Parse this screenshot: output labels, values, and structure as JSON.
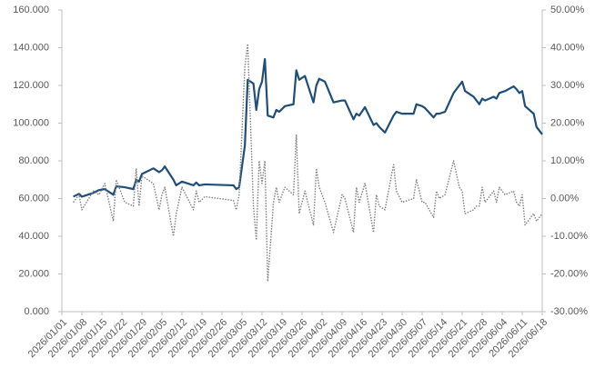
{
  "chart_data": {
    "type": "line",
    "x": [
      "2026/01/05",
      "2026/01/07",
      "2026/01/08",
      "2026/01/12",
      "2026/01/14",
      "2026/01/16",
      "2026/01/19",
      "2026/01/20",
      "2026/01/23",
      "2026/01/26",
      "2026/01/27",
      "2026/01/28",
      "2026/01/29",
      "2026/02/02",
      "2026/02/04",
      "2026/02/05",
      "2026/02/06",
      "2026/02/09",
      "2026/02/10",
      "2026/02/12",
      "2026/02/16",
      "2026/02/17",
      "2026/02/18",
      "2026/02/20",
      "2026/03/02",
      "2026/03/03",
      "2026/03/04",
      "2026/03/06",
      "2026/03/07",
      "2026/03/09",
      "2026/03/10",
      "2026/03/11",
      "2026/03/12",
      "2026/03/13",
      "2026/03/14",
      "2026/03/16",
      "2026/03/17",
      "2026/03/18",
      "2026/03/20",
      "2026/03/23",
      "2026/03/24",
      "2026/03/25",
      "2026/03/27",
      "2026/03/30",
      "2026/03/31",
      "2026/04/01",
      "2026/04/03",
      "2026/04/06",
      "2026/04/09",
      "2026/04/10",
      "2026/04/13",
      "2026/04/14",
      "2026/04/15",
      "2026/04/17",
      "2026/04/20",
      "2026/04/21",
      "2026/04/22",
      "2026/04/24",
      "2026/04/27",
      "2026/04/28",
      "2026/04/30",
      "2026/05/04",
      "2026/05/05",
      "2026/05/07",
      "2026/05/08",
      "2026/05/11",
      "2026/05/12",
      "2026/05/13",
      "2026/05/15",
      "2026/05/18",
      "2026/05/20",
      "2026/05/21",
      "2026/05/22",
      "2026/05/25",
      "2026/05/26",
      "2026/05/27",
      "2026/05/28",
      "2026/05/29",
      "2026/06/01",
      "2026/06/02",
      "2026/06/03",
      "2026/06/05",
      "2026/06/08",
      "2026/06/09",
      "2026/06/10",
      "2026/06/11",
      "2026/06/12",
      "2026/06/15",
      "2026/06/16",
      "2026/06/18"
    ],
    "series": [
      {
        "color": "#1f4e79",
        "axis": "y",
        "style": "solid",
        "values": [
          61,
          62.5,
          61,
          63,
          64.5,
          65,
          62,
          66.5,
          66,
          65,
          70,
          69,
          73,
          76,
          74,
          75,
          77,
          70,
          67,
          69,
          67,
          68.5,
          67,
          67.5,
          67,
          65,
          66,
          88,
          123,
          121,
          107,
          118,
          122,
          134,
          104,
          103,
          107,
          106,
          109,
          110,
          128,
          123,
          125,
          111,
          120,
          123.5,
          122,
          111,
          112,
          112,
          102,
          105,
          104,
          108.5,
          99,
          100,
          98,
          95,
          104,
          106,
          105,
          105,
          110,
          109,
          108,
          103,
          105,
          105,
          106,
          116,
          120,
          122,
          117,
          114,
          112,
          110,
          113,
          112,
          114,
          113,
          116,
          117,
          119.5,
          118,
          116,
          117,
          109,
          105,
          98,
          94
        ]
      },
      {
        "color": "#808080",
        "axis": "y2",
        "style": "dotted",
        "values": [
          -1,
          1,
          -3,
          2,
          1,
          4,
          -6,
          5,
          -1,
          -2,
          8,
          -2,
          6,
          4,
          -3,
          1,
          3,
          -10,
          -4,
          3,
          -3,
          2,
          -1,
          0.5,
          -0.5,
          -3,
          1,
          35,
          41,
          -2,
          -11,
          10,
          4,
          10,
          -22,
          -1,
          3,
          -1,
          3,
          1,
          17,
          -4,
          2,
          -7,
          8,
          3,
          -1,
          -9,
          1,
          0,
          -9,
          3,
          -1,
          4,
          -9,
          1,
          -2,
          -3,
          9,
          2,
          -1,
          0,
          5,
          -1,
          -1,
          -5,
          2,
          0,
          1,
          10,
          3,
          2,
          -4,
          -3,
          -2,
          -2,
          3,
          -1,
          2,
          -1,
          3,
          1,
          2,
          -1,
          -2,
          1,
          -7,
          -4,
          -6,
          -4
        ]
      }
    ],
    "xlim": [
      "2026/01/01",
      "2026/06/18"
    ],
    "xticks": [
      "2026/01/01",
      "2026/01/08",
      "2026/01/15",
      "2026/01/22",
      "2026/01/29",
      "2026/02/05",
      "2026/02/12",
      "2026/02/19",
      "2026/02/26",
      "2026/03/05",
      "2026/03/12",
      "2026/03/19",
      "2026/03/26",
      "2026/04/02",
      "2026/04/09",
      "2026/04/16",
      "2026/04/23",
      "2026/04/30",
      "2026/05/07",
      "2026/05/14",
      "2026/05/21",
      "2026/05/28",
      "2026/06/04",
      "2026/06/11",
      "2026/06/18"
    ],
    "ylim": [
      0,
      160
    ],
    "yticks": [
      {
        "value": 0,
        "label": "0.000"
      },
      {
        "value": 20,
        "label": "20.000"
      },
      {
        "value": 40,
        "label": "40.000"
      },
      {
        "value": 60,
        "label": "60.000"
      },
      {
        "value": 80,
        "label": "80.000"
      },
      {
        "value": 100,
        "label": "100.000"
      },
      {
        "value": 120,
        "label": "120.000"
      },
      {
        "value": 140,
        "label": "140.000"
      },
      {
        "value": 160,
        "label": "160.000"
      }
    ],
    "y2lim": [
      -30,
      50
    ],
    "y2ticks": [
      {
        "value": -30,
        "label": "-30.00%"
      },
      {
        "value": -20,
        "label": "-20.00%"
      },
      {
        "value": -10,
        "label": "-10.00%"
      },
      {
        "value": 0,
        "label": "0.00%"
      },
      {
        "value": 10,
        "label": "10.00%"
      },
      {
        "value": 20,
        "label": "20.00%"
      },
      {
        "value": 30,
        "label": "30.00%"
      },
      {
        "value": 40,
        "label": "40.00%"
      },
      {
        "value": 50,
        "label": "50.00%"
      }
    ],
    "grid": false
  }
}
